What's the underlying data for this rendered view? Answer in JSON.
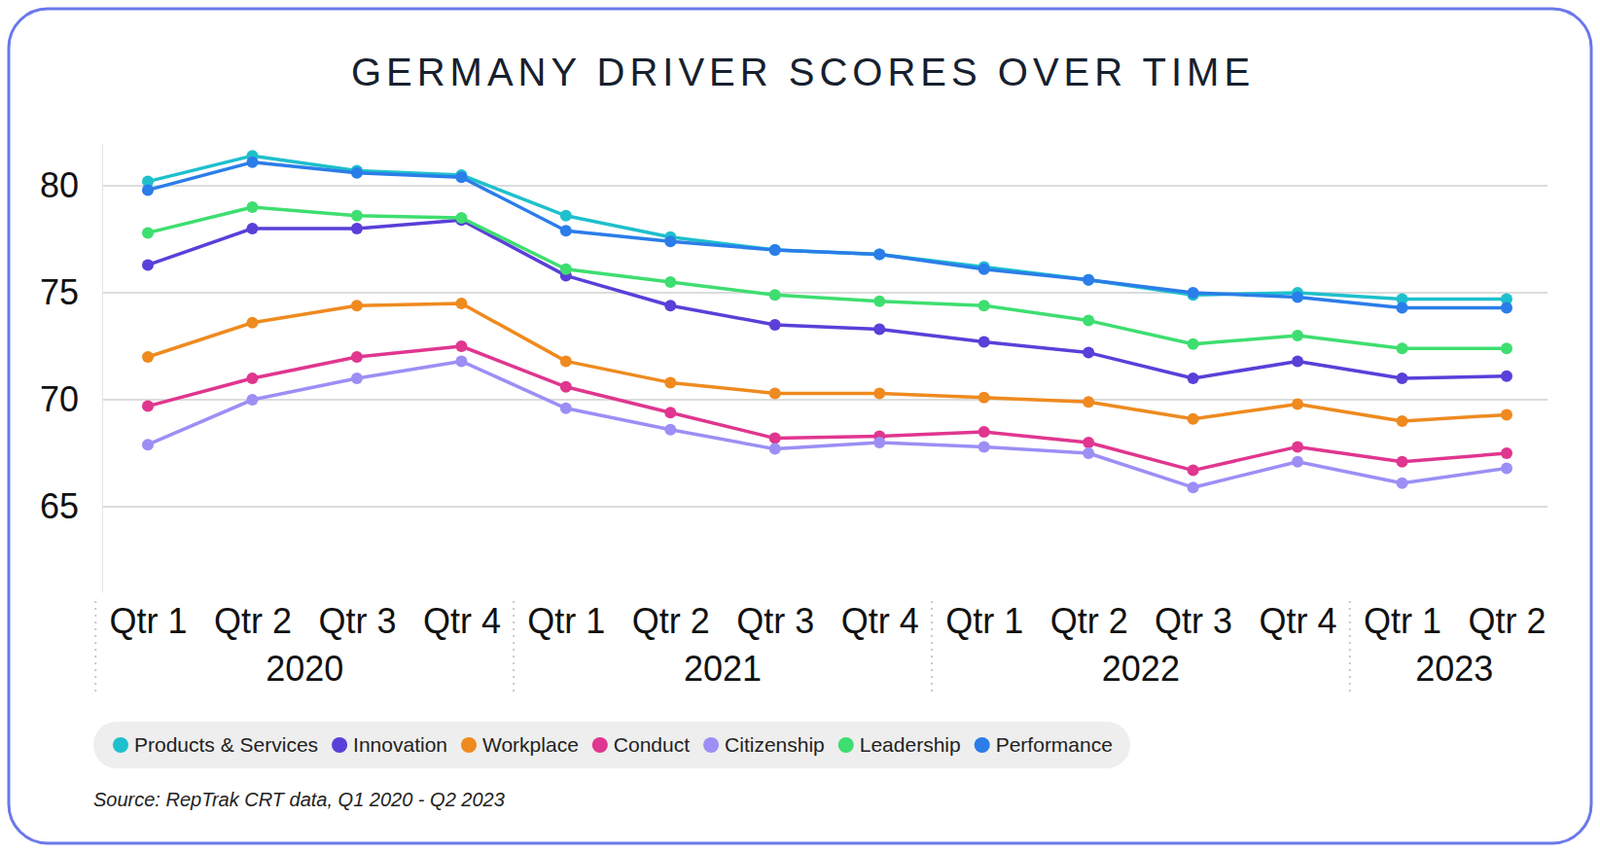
{
  "chart_data": {
    "type": "line",
    "title": "GERMANY DRIVER SCORES OVER TIME",
    "source": "Source: RepTrak CRT data, Q1 2020 - Q2 2023",
    "categories": [
      "Qtr 1",
      "Qtr 2",
      "Qtr 3",
      "Qtr 4",
      "Qtr 1",
      "Qtr 2",
      "Qtr 3",
      "Qtr 4",
      "Qtr 1",
      "Qtr 2",
      "Qtr 3",
      "Qtr 4",
      "Qtr 1",
      "Qtr 2"
    ],
    "groups": [
      {
        "label": "2020",
        "size": 4
      },
      {
        "label": "2021",
        "size": 4
      },
      {
        "label": "2022",
        "size": 4
      },
      {
        "label": "2023",
        "size": 2
      }
    ],
    "ylim": [
      61,
      82
    ],
    "yticks": [
      65,
      70,
      75,
      80
    ],
    "grid": true,
    "legend": "bottom",
    "marker": "circle",
    "series": [
      {
        "name": "Products & Services",
        "color": "#1ec0cc",
        "values": [
          80.2,
          81.4,
          80.7,
          80.5,
          78.6,
          77.6,
          77.0,
          76.8,
          76.2,
          75.6,
          74.9,
          75.0,
          74.7,
          74.7
        ]
      },
      {
        "name": "Innovation",
        "color": "#5a3fd9",
        "values": [
          76.3,
          78.0,
          78.0,
          78.4,
          75.8,
          74.4,
          73.5,
          73.3,
          72.7,
          72.2,
          71.0,
          71.8,
          71.0,
          71.1
        ]
      },
      {
        "name": "Workplace",
        "color": "#ef8a1f",
        "values": [
          72.0,
          73.6,
          74.4,
          74.5,
          71.8,
          70.8,
          70.3,
          70.3,
          70.1,
          69.9,
          69.1,
          69.8,
          69.0,
          69.3
        ]
      },
      {
        "name": "Conduct",
        "color": "#e0368f",
        "values": [
          69.7,
          71.0,
          72.0,
          72.5,
          70.6,
          69.4,
          68.2,
          68.3,
          68.5,
          68.0,
          66.7,
          67.8,
          67.1,
          67.5
        ]
      },
      {
        "name": "Citizenship",
        "color": "#9b8ff5",
        "values": [
          67.9,
          70.0,
          71.0,
          71.8,
          69.6,
          68.6,
          67.7,
          68.0,
          67.8,
          67.5,
          65.9,
          67.1,
          66.1,
          66.8
        ]
      },
      {
        "name": "Leadership",
        "color": "#3ede70",
        "values": [
          77.8,
          79.0,
          78.6,
          78.5,
          76.1,
          75.5,
          74.9,
          74.6,
          74.4,
          73.7,
          72.6,
          73.0,
          72.4,
          72.4
        ]
      },
      {
        "name": "Performance",
        "color": "#2b7de9",
        "values": [
          79.8,
          81.1,
          80.6,
          80.4,
          77.9,
          77.4,
          77.0,
          76.8,
          76.1,
          75.6,
          75.0,
          74.8,
          74.3,
          74.3
        ]
      }
    ]
  }
}
